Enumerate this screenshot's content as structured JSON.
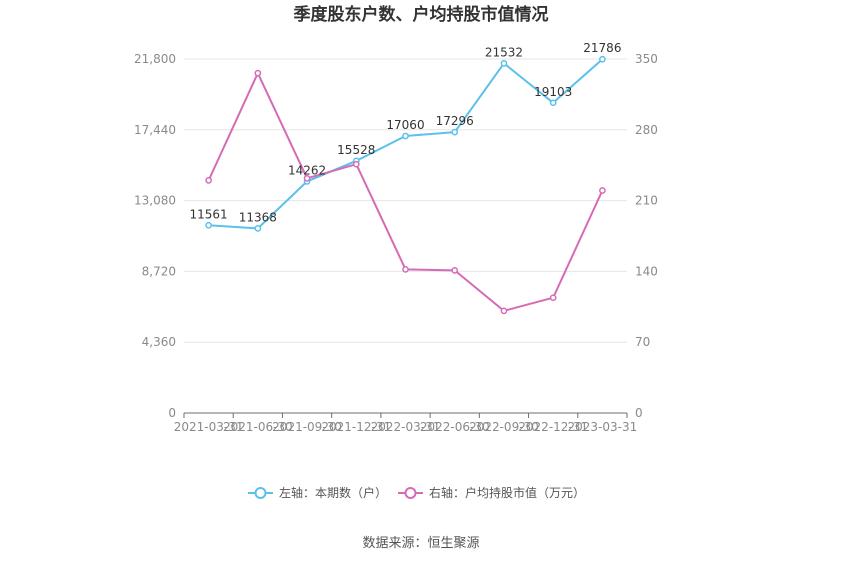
{
  "chart_data": {
    "type": "line",
    "title": "季度股东户数、户均持股市值情况",
    "categories": [
      "2021-03-31",
      "2021-06-30",
      "2021-09-30",
      "2021-12-31",
      "2022-03-31",
      "2022-06-30",
      "2022-09-30",
      "2022-12-31",
      "2023-03-31"
    ],
    "y_left": {
      "ticks": [
        "0",
        "4,360",
        "8,720",
        "13,080",
        "17,440",
        "21,800"
      ],
      "ylim": [
        0,
        21800
      ]
    },
    "y_right": {
      "ticks": [
        "0",
        "70",
        "140",
        "210",
        "280",
        "350"
      ],
      "ylim": [
        0,
        350
      ]
    },
    "grid": true,
    "legend_position": "bottom",
    "series": [
      {
        "name": "左轴：本期数（户）",
        "axis": "left",
        "color": "#5bc0eb",
        "values": [
          11561,
          11368,
          14262,
          15528,
          17060,
          17296,
          21532,
          19103,
          21786
        ],
        "labels": [
          "11561",
          "11368",
          "14262",
          "15528",
          "17060",
          "17296",
          "21532",
          "19103",
          "21786"
        ]
      },
      {
        "name": "右轴：户均持股市值（万元）",
        "axis": "right",
        "color": "#d66bb5",
        "values": [
          230,
          336,
          232,
          246,
          142,
          141,
          101,
          114,
          220
        ]
      }
    ]
  },
  "source": "数据来源：恒生聚源"
}
